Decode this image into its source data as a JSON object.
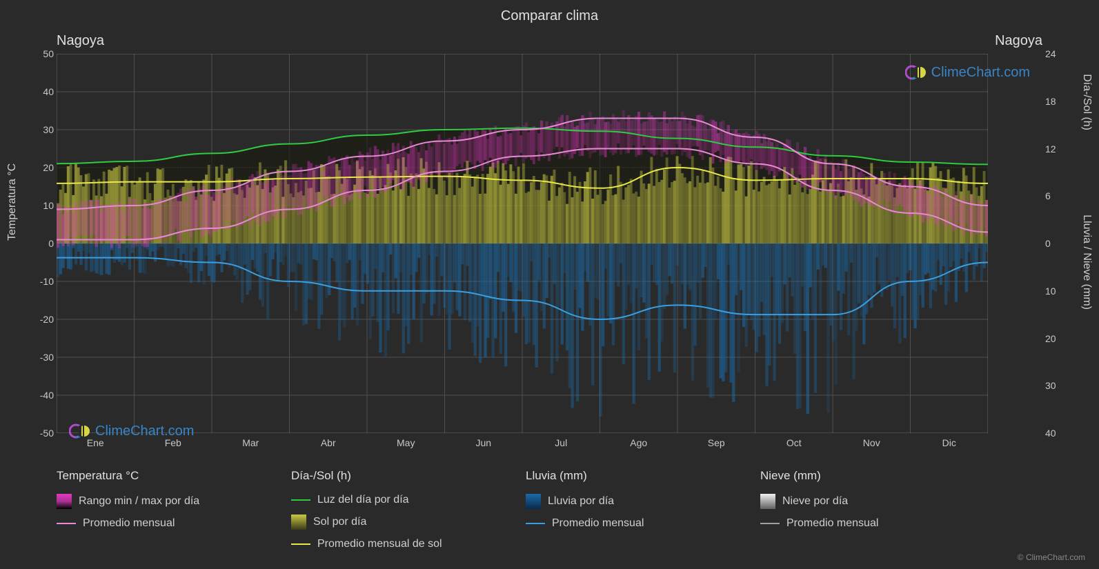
{
  "title": "Comparar clima",
  "location": "Nagoya",
  "brand": "ClimeChart.com",
  "brand_color": "#3a8fd8",
  "copyright": "© ClimeChart.com",
  "background_color": "#2a2a2a",
  "plot_background": "#2a2a2a",
  "grid_color": "#6a6a6a",
  "axis_left": {
    "label": "Temperatura °C",
    "min": -50,
    "max": 50,
    "step": 10,
    "ticks": [
      50,
      40,
      30,
      20,
      10,
      0,
      -10,
      -20,
      -30,
      -40,
      -50
    ]
  },
  "axis_right_top": {
    "label": "Día-/Sol (h)",
    "ticks": [
      24,
      18,
      12,
      6,
      0
    ]
  },
  "axis_right_bot": {
    "label": "Lluvia / Nieve (mm)",
    "ticks": [
      10,
      20,
      30,
      40
    ]
  },
  "months": [
    "Ene",
    "Feb",
    "Mar",
    "Abr",
    "May",
    "Jun",
    "Jul",
    "Ago",
    "Sep",
    "Oct",
    "Nov",
    "Dic"
  ],
  "legend": {
    "temp": {
      "header": "Temperatura °C",
      "range_label": "Rango min / max por día",
      "mean_label": "Promedio mensual",
      "range_color": "#e636c4",
      "mean_color": "#e88ad6"
    },
    "daysun": {
      "header": "Día-/Sol (h)",
      "daylight_label": "Luz del día por día",
      "sun_label": "Sol por día",
      "sunmean_label": "Promedio mensual de sol",
      "daylight_color": "#2ecc40",
      "sun_fill_color": "#c9c943",
      "sun_mean_color": "#e8e84a"
    },
    "rain": {
      "header": "Lluvia (mm)",
      "daily_label": "Lluvia por día",
      "mean_label": "Promedio mensual",
      "daily_color": "#1a6aa8",
      "mean_color": "#3a9fe0"
    },
    "snow": {
      "header": "Nieve (mm)",
      "daily_label": "Nieve por día",
      "mean_label": "Promedio mensual",
      "daily_color": "#c0c0c0",
      "mean_color": "#a0a0a0"
    }
  },
  "series": {
    "daylight_h_13pts": [
      10.1,
      10.4,
      11.4,
      12.6,
      13.7,
      14.4,
      14.6,
      14.2,
      13.3,
      12.2,
      11.1,
      10.3,
      10.0
    ],
    "sun_mean_h_13pts": [
      7.6,
      7.8,
      7.8,
      8.2,
      8.4,
      8.5,
      8.0,
      7.0,
      9.6,
      8.0,
      8.2,
      8.2,
      7.6
    ],
    "temp_max_c_13pts": [
      9,
      10,
      14,
      19,
      23,
      27,
      30,
      33,
      33,
      28,
      21,
      15,
      10
    ],
    "temp_min_c_13pts": [
      1,
      1,
      4,
      9,
      14,
      19,
      23,
      25,
      25,
      21,
      14,
      8,
      3
    ],
    "temp_mean_c_13pts": [
      5,
      5.5,
      9,
      14,
      18.5,
      23,
      26.5,
      29,
      29,
      24.5,
      17.5,
      11.5,
      6.5
    ],
    "rain_mean_mm_13pts": [
      3,
      3,
      4,
      8,
      10,
      10,
      12,
      16,
      13,
      15,
      15,
      8,
      4
    ]
  },
  "styling": {
    "line_width": 2,
    "temp_fill_opacity": 0.45,
    "sun_fill_opacity": 0.55,
    "rain_fill_opacity": 0.45,
    "noise_bar_opacity": 0.35
  }
}
